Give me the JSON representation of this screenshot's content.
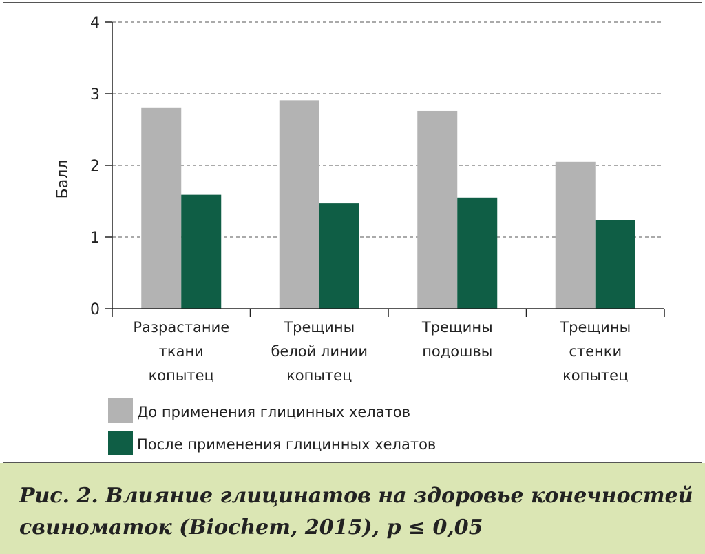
{
  "chart_data": {
    "type": "bar",
    "ylabel": "Балл",
    "ylim": [
      0,
      4
    ],
    "yticks": [
      "0",
      "1",
      "2",
      "3",
      "4"
    ],
    "grid": true,
    "categories": [
      [
        "Разрастание",
        "ткани",
        "копытец"
      ],
      [
        "Трещины",
        "белой линии",
        "копытец"
      ],
      [
        "Трещины",
        "подошвы"
      ],
      [
        "Трещины",
        "стенки",
        "копытец"
      ]
    ],
    "series": [
      {
        "name": "До применения глицинных хелатов",
        "color": "#b3b3b3",
        "values": [
          2.8,
          2.91,
          2.76,
          2.05
        ]
      },
      {
        "name": "После применения глицинных хелатов",
        "color": "#0f5e45",
        "values": [
          1.59,
          1.47,
          1.55,
          1.24
        ]
      }
    ],
    "legend_position": "bottom-left"
  },
  "caption": {
    "line1": "Рис. 2. Влияние глицинатов на здоровье конечностей",
    "line2": "свиноматок (Biochem, 2015), p ≤ 0,05"
  }
}
